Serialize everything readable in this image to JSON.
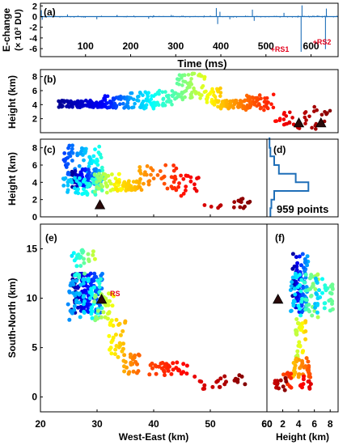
{
  "panel_labels": {
    "a": "(a)",
    "b": "(b)",
    "c": "(c)",
    "d": "(d)",
    "e": "(e)",
    "f": "(f)"
  },
  "axis_labels": {
    "echange": "E-change",
    "echange_unit": "(× 10³ DU)",
    "time": "Time (ms)",
    "height_b": "Height (km)",
    "height_c": "Height (km)",
    "south_north": "South-North (km)",
    "west_east": "West-East (km)",
    "height_f": "Height (km)"
  },
  "annotations": {
    "rs1": "+RS1",
    "rs2": "+RS2",
    "rs": "RS",
    "points": "959  points"
  },
  "colors": {
    "echange_line": "#1f6fb8",
    "annotation_red": "#e3001b",
    "histogram": "#1f6fb8",
    "marker": "#2a0a0a"
  },
  "chart_data": [
    {
      "id": "a",
      "type": "line",
      "title": "",
      "xlabel": "Time (ms)",
      "ylabel": "E-change (× 10³ DU)",
      "xlim": [
        0,
        660
      ],
      "ylim": [
        -7.5,
        2.5
      ],
      "xticks": [
        100,
        200,
        300,
        400,
        500,
        600
      ],
      "yticks": [
        2,
        0,
        -2,
        -4,
        -6
      ],
      "spikes": [
        {
          "x": 2,
          "y": 1.2
        },
        {
          "x": 4,
          "y": -0.6
        },
        {
          "x": 60,
          "y": 0.4
        },
        {
          "x": 125,
          "y": -0.5
        },
        {
          "x": 170,
          "y": 0.3
        },
        {
          "x": 240,
          "y": -0.4
        },
        {
          "x": 290,
          "y": 0.3
        },
        {
          "x": 390,
          "y": 1.6
        },
        {
          "x": 393,
          "y": -1.4
        },
        {
          "x": 398,
          "y": 0.9
        },
        {
          "x": 420,
          "y": -0.5
        },
        {
          "x": 470,
          "y": 1.3
        },
        {
          "x": 474,
          "y": -0.8
        },
        {
          "x": 540,
          "y": 0.7
        },
        {
          "x": 578,
          "y": -6.6
        },
        {
          "x": 580,
          "y": 2.1
        },
        {
          "x": 632,
          "y": -6.1
        },
        {
          "x": 634,
          "y": 1.5
        }
      ],
      "annotations": [
        {
          "text": "+RS1",
          "x": 578
        },
        {
          "text": "+RS2",
          "x": 632
        }
      ]
    },
    {
      "id": "b",
      "type": "scatter",
      "title": "",
      "xlabel": "Time (ms)",
      "ylabel": "Height (km)",
      "xlim": [
        0,
        660
      ],
      "ylim": [
        0,
        9
      ],
      "yticks": [
        2,
        4,
        6,
        8
      ],
      "clusters": [
        {
          "x0": 40,
          "x1": 140,
          "ymin": 3.6,
          "ymax": 4.6,
          "n": 90,
          "t0": 0.02,
          "t1": 0.12
        },
        {
          "x0": 140,
          "x1": 200,
          "ymin": 3.5,
          "ymax": 5.3,
          "n": 55,
          "t0": 0.12,
          "t1": 0.28
        },
        {
          "x0": 200,
          "x1": 260,
          "ymin": 3.4,
          "ymax": 5.8,
          "n": 50,
          "t0": 0.28,
          "t1": 0.4
        },
        {
          "x0": 260,
          "x1": 300,
          "ymin": 3.8,
          "ymax": 6.0,
          "n": 30,
          "t0": 0.4,
          "t1": 0.46
        },
        {
          "x0": 300,
          "x1": 365,
          "ymin": 4.6,
          "ymax": 8.5,
          "n": 60,
          "t0": 0.46,
          "t1": 0.6
        },
        {
          "x0": 365,
          "x1": 400,
          "ymin": 3.6,
          "ymax": 6.4,
          "n": 35,
          "t0": 0.6,
          "t1": 0.68
        },
        {
          "x0": 400,
          "x1": 450,
          "ymin": 3.4,
          "ymax": 4.6,
          "n": 55,
          "t0": 0.68,
          "t1": 0.76
        },
        {
          "x0": 450,
          "x1": 520,
          "ymin": 3.2,
          "ymax": 5.5,
          "n": 55,
          "t0": 0.76,
          "t1": 0.86
        },
        {
          "x0": 520,
          "x1": 580,
          "ymin": 0.6,
          "ymax": 3.0,
          "n": 22,
          "t0": 0.86,
          "t1": 0.94
        },
        {
          "x0": 580,
          "x1": 650,
          "ymin": 0.5,
          "ymax": 3.8,
          "n": 20,
          "t0": 0.94,
          "t1": 1.0
        }
      ],
      "markers": [
        {
          "x": 573,
          "y": 1.4
        },
        {
          "x": 622,
          "y": 1.4
        }
      ]
    },
    {
      "id": "c",
      "type": "scatter",
      "title": "",
      "xlabel": "West-East (km)",
      "ylabel": "Height (km)",
      "xlim": [
        20,
        60
      ],
      "ylim": [
        0,
        9
      ],
      "yticks": [
        0,
        2,
        4,
        6,
        8
      ],
      "clusters": [
        {
          "x0": 24.0,
          "x1": 31.0,
          "ymin": 4.5,
          "ymax": 8.3,
          "n": 70,
          "t0": 0.18,
          "t1": 0.42
        },
        {
          "x0": 25.5,
          "x1": 31.5,
          "ymin": 3.4,
          "ymax": 5.6,
          "n": 90,
          "t0": 0.02,
          "t1": 0.35
        },
        {
          "x0": 24.0,
          "x1": 31.0,
          "ymin": 2.5,
          "ymax": 4.5,
          "n": 50,
          "t0": 0.3,
          "t1": 0.45
        },
        {
          "x0": 29.5,
          "x1": 34.5,
          "ymin": 2.8,
          "ymax": 5.0,
          "n": 45,
          "t0": 0.5,
          "t1": 0.64
        },
        {
          "x0": 33.0,
          "x1": 37.5,
          "ymin": 3.0,
          "ymax": 4.2,
          "n": 40,
          "t0": 0.64,
          "t1": 0.7
        },
        {
          "x0": 37.0,
          "x1": 44.0,
          "ymin": 3.0,
          "ymax": 6.0,
          "n": 40,
          "t0": 0.7,
          "t1": 0.84
        },
        {
          "x0": 44.0,
          "x1": 48.0,
          "ymin": 2.0,
          "ymax": 5.0,
          "n": 18,
          "t0": 0.84,
          "t1": 0.9
        },
        {
          "x0": 48.0,
          "x1": 57.0,
          "ymin": 0.9,
          "ymax": 2.3,
          "n": 18,
          "t0": 0.9,
          "t1": 1.0
        }
      ],
      "markers": [
        {
          "x": 30.5,
          "y": 1.4
        }
      ]
    },
    {
      "id": "d",
      "type": "line",
      "title": "",
      "ylim": [
        0,
        9
      ],
      "histogram_steps": [
        {
          "v": 0.04,
          "y0": 0,
          "y1": 1
        },
        {
          "v": 0.06,
          "y0": 1,
          "y1": 2
        },
        {
          "v": 0.12,
          "y0": 2,
          "y1": 3
        },
        {
          "v": 0.85,
          "y0": 3,
          "y1": 4
        },
        {
          "v": 0.58,
          "y0": 4,
          "y1": 5
        },
        {
          "v": 0.22,
          "y0": 5,
          "y1": 6
        },
        {
          "v": 0.12,
          "y0": 6,
          "y1": 7
        },
        {
          "v": 0.04,
          "y0": 7,
          "y1": 8
        },
        {
          "v": 0.02,
          "y0": 8,
          "y1": 9.2
        }
      ],
      "annotation": "959  points"
    },
    {
      "id": "e",
      "type": "scatter",
      "title": "",
      "xlabel": "West-East (km)",
      "ylabel": "South-North (km)",
      "xlim": [
        20,
        60
      ],
      "ylim": [
        -1.5,
        17.5
      ],
      "xticks": [
        20,
        30,
        40,
        50,
        60
      ],
      "yticks": [
        0,
        5,
        10,
        15
      ],
      "clusters": [
        {
          "x0": 25.5,
          "x1": 31.0,
          "ymin": 8.5,
          "ymax": 12.5,
          "n": 110,
          "t0": 0.02,
          "t1": 0.25
        },
        {
          "x0": 24.5,
          "x1": 31.0,
          "ymin": 7.8,
          "ymax": 12.0,
          "n": 60,
          "t0": 0.25,
          "t1": 0.42
        },
        {
          "x0": 25.5,
          "x1": 30.0,
          "ymin": 12.0,
          "ymax": 15.0,
          "n": 30,
          "t0": 0.35,
          "t1": 0.6
        },
        {
          "x0": 29.5,
          "x1": 33.0,
          "ymin": 7.5,
          "ymax": 10.5,
          "n": 35,
          "t0": 0.5,
          "t1": 0.62
        },
        {
          "x0": 32.0,
          "x1": 35.0,
          "ymin": 4.0,
          "ymax": 8.0,
          "n": 28,
          "t0": 0.62,
          "t1": 0.7
        },
        {
          "x0": 34.5,
          "x1": 37.5,
          "ymin": 2.3,
          "ymax": 4.5,
          "n": 25,
          "t0": 0.7,
          "t1": 0.78
        },
        {
          "x0": 37.0,
          "x1": 46.0,
          "ymin": 2.2,
          "ymax": 3.6,
          "n": 35,
          "t0": 0.78,
          "t1": 0.88
        },
        {
          "x0": 46.0,
          "x1": 56.5,
          "ymin": 0.8,
          "ymax": 2.2,
          "n": 22,
          "t0": 0.88,
          "t1": 1.0
        }
      ],
      "markers": [
        {
          "x": 30.8,
          "y": 9.9
        }
      ],
      "marker_label": "RS"
    },
    {
      "id": "f",
      "type": "scatter",
      "title": "",
      "xlabel": "Height (km)",
      "ylabel": "",
      "xlim": [
        0,
        9
      ],
      "ylim": [
        -1.5,
        17.5
      ],
      "xticks": [
        2,
        4,
        6,
        8
      ],
      "clusters": [
        {
          "x0": 3.2,
          "x1": 5.2,
          "ymin": 8.5,
          "ymax": 14.5,
          "n": 90,
          "t0": 0.02,
          "t1": 0.3
        },
        {
          "x0": 3.0,
          "x1": 6.5,
          "ymin": 8.0,
          "ymax": 12.5,
          "n": 60,
          "t0": 0.3,
          "t1": 0.55
        },
        {
          "x0": 6.0,
          "x1": 8.5,
          "ymin": 8.5,
          "ymax": 12.0,
          "n": 35,
          "t0": 0.3,
          "t1": 0.5
        },
        {
          "x0": 3.6,
          "x1": 5.0,
          "ymin": 4.0,
          "ymax": 8.0,
          "n": 35,
          "t0": 0.55,
          "t1": 0.68
        },
        {
          "x0": 3.2,
          "x1": 5.5,
          "ymin": 2.0,
          "ymax": 4.0,
          "n": 40,
          "t0": 0.68,
          "t1": 0.8
        },
        {
          "x0": 1.8,
          "x1": 6.0,
          "ymin": 0.8,
          "ymax": 2.5,
          "n": 22,
          "t0": 0.8,
          "t1": 0.92
        },
        {
          "x0": 0.8,
          "x1": 2.5,
          "ymin": 0.5,
          "ymax": 2.0,
          "n": 12,
          "t0": 0.92,
          "t1": 1.0
        }
      ],
      "markers": [
        {
          "x": 1.4,
          "y": 9.9
        }
      ]
    }
  ]
}
